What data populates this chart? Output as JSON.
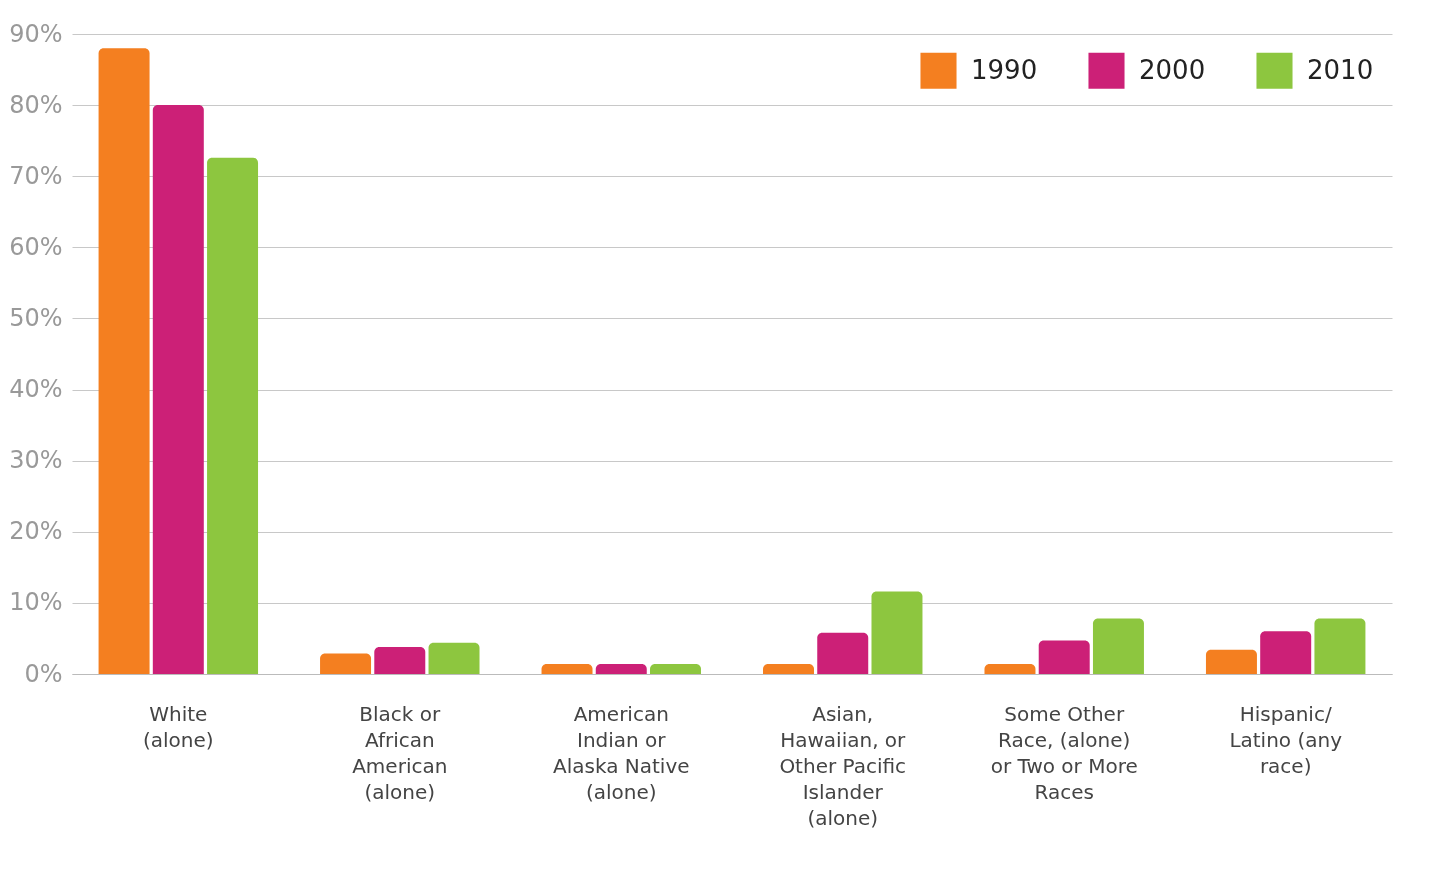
{
  "chart_data": {
    "type": "bar",
    "categories": [
      "White (alone)",
      "Black or African American (alone)",
      "American Indian or Alaska Native (alone)",
      "Asian, Hawaiian, or Other Pacific Islander (alone)",
      "Some Other Race, (alone) or Two or More Races",
      "Hispanic/ Latino (any race)"
    ],
    "series": [
      {
        "name": "1990",
        "color": "#f47f20",
        "values": [
          88,
          2.9,
          1.4,
          1.4,
          1.4,
          3.4
        ]
      },
      {
        "name": "2000",
        "color": "#cc2077",
        "values": [
          80,
          3.8,
          1.4,
          5.8,
          4.7,
          6.0
        ]
      },
      {
        "name": "2010",
        "color": "#8dc63f",
        "values": [
          72.6,
          4.4,
          1.4,
          11.6,
          7.8,
          7.8
        ]
      }
    ],
    "ylim": [
      0,
      90
    ],
    "yticks": [
      {
        "value": 0,
        "label": "0%"
      },
      {
        "value": 10,
        "label": "10%"
      },
      {
        "value": 20,
        "label": "20%"
      },
      {
        "value": 30,
        "label": "30%"
      },
      {
        "value": 40,
        "label": "40%"
      },
      {
        "value": 50,
        "label": "50%"
      },
      {
        "value": 60,
        "label": "60%"
      },
      {
        "value": 70,
        "label": "70%"
      },
      {
        "value": 80,
        "label": "80%"
      },
      {
        "value": 90,
        "label": "90%"
      }
    ],
    "grid": "y",
    "legend": "top right"
  }
}
